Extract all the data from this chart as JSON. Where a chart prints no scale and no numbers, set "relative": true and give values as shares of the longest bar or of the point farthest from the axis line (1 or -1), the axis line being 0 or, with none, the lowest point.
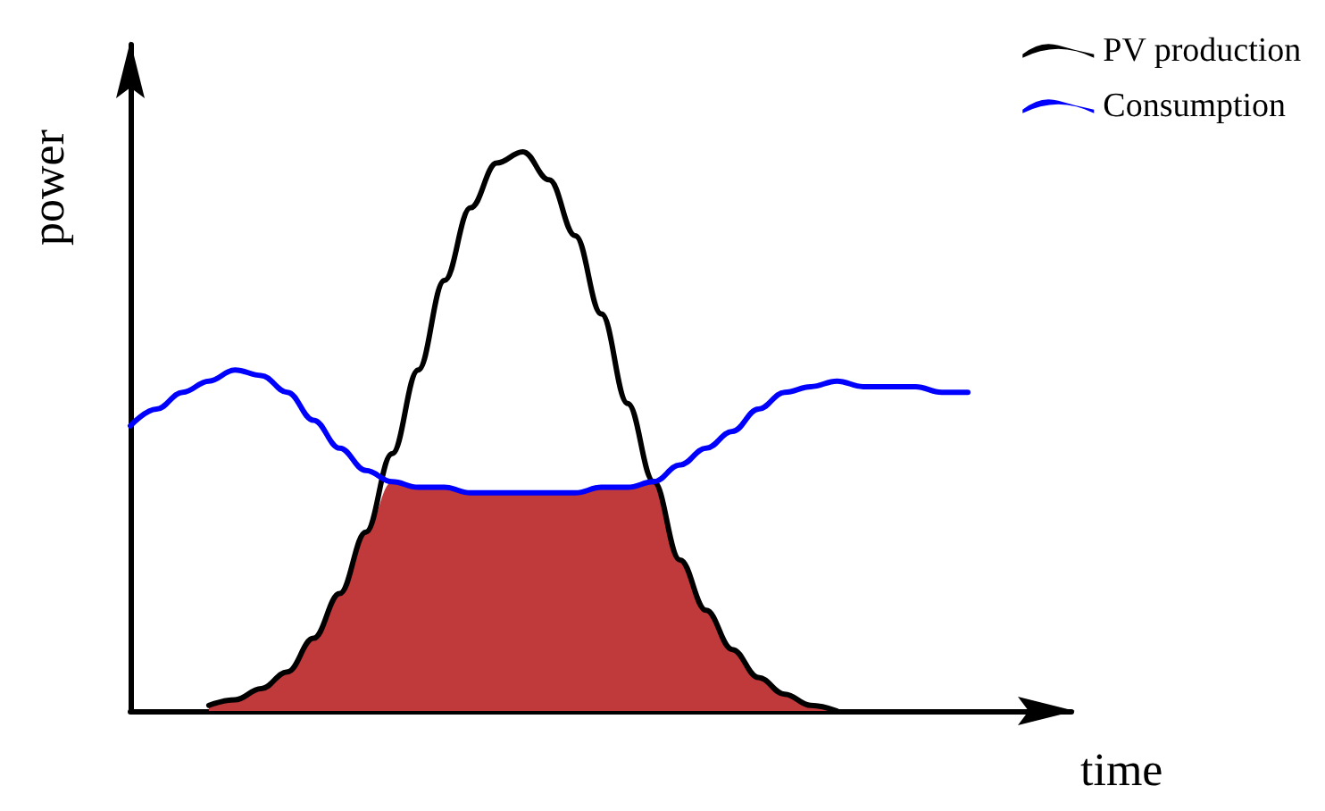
{
  "chart_data": {
    "type": "line",
    "relative": true,
    "xlabel": "time",
    "ylabel": "power",
    "legend": "top right",
    "grid": false,
    "marker": "none",
    "line_style": "solid",
    "categories": [
      null,
      null,
      null,
      null,
      null,
      null,
      null,
      null,
      null,
      null,
      null,
      null,
      null,
      null,
      null,
      null,
      null,
      null,
      null,
      null,
      null,
      null,
      null,
      null,
      null,
      null,
      null,
      null,
      null,
      null,
      null,
      null,
      null
    ],
    "series": [
      {
        "type": "area",
        "color": "#c0393b",
        "values": [
          null,
          null,
          null,
          0.01,
          0.02,
          0.04,
          0.07,
          0.13,
          0.21,
          0.32,
          0.41,
          0.4,
          0.4,
          0.39,
          0.39,
          0.39,
          0.39,
          0.39,
          0.4,
          0.4,
          0.41,
          0.27,
          0.18,
          0.11,
          0.06,
          0.03,
          0.01,
          0,
          null,
          null,
          null,
          null,
          null
        ]
      },
      {
        "name": "PV production",
        "color": "#000000",
        "values": [
          null,
          null,
          null,
          0.01,
          0.02,
          0.04,
          0.07,
          0.13,
          0.21,
          0.32,
          0.46,
          0.61,
          0.77,
          0.9,
          0.98,
          1.0,
          0.95,
          0.85,
          0.71,
          0.55,
          0.41,
          0.27,
          0.18,
          0.11,
          0.06,
          0.03,
          0.01,
          0,
          null,
          null,
          null,
          null,
          null
        ]
      },
      {
        "name": "Consumption",
        "color": "#0000ff",
        "values": [
          0.51,
          0.54,
          0.57,
          0.59,
          0.61,
          0.6,
          0.57,
          0.52,
          0.47,
          0.43,
          0.41,
          0.4,
          0.4,
          0.39,
          0.39,
          0.39,
          0.39,
          0.39,
          0.4,
          0.4,
          0.41,
          0.44,
          0.47,
          0.5,
          0.54,
          0.57,
          0.58,
          0.59,
          0.58,
          0.58,
          0.58,
          0.57,
          0.57
        ]
      }
    ]
  }
}
